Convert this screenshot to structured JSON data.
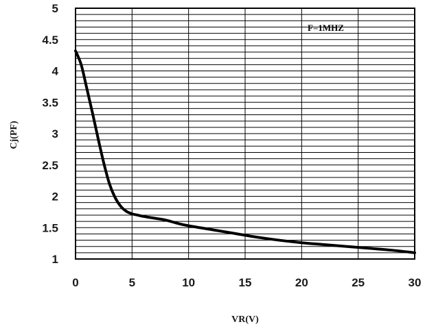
{
  "chart_data": {
    "type": "line",
    "title": "",
    "xlabel": "VR(V)",
    "ylabel": "Cj(PF)",
    "annotation": "F=1MHZ",
    "xlim": [
      0,
      30
    ],
    "ylim": [
      1,
      5
    ],
    "x_ticks": [
      0,
      5,
      10,
      15,
      20,
      25,
      30
    ],
    "y_ticks": [
      1,
      1.5,
      2,
      2.5,
      3,
      3.5,
      4,
      4.5,
      5
    ],
    "y_tick_labels": [
      "1",
      "1.5",
      "2",
      "2.5",
      "3",
      "3.5",
      "4",
      "4.5",
      "5"
    ],
    "grid": {
      "x_major_step": 5,
      "y_minor_step": 0.1
    },
    "series": [
      {
        "color": "#000000",
        "x": [
          0,
          0.5,
          1,
          1.5,
          2,
          2.5,
          3,
          3.5,
          4,
          4.5,
          5,
          5.5,
          6,
          7,
          8,
          9,
          10,
          12,
          14,
          16,
          18,
          20,
          22,
          24,
          26,
          28,
          30
        ],
        "y": [
          4.32,
          4.1,
          3.72,
          3.33,
          2.92,
          2.53,
          2.2,
          1.98,
          1.84,
          1.76,
          1.72,
          1.7,
          1.68,
          1.65,
          1.62,
          1.57,
          1.53,
          1.47,
          1.41,
          1.35,
          1.3,
          1.26,
          1.23,
          1.2,
          1.17,
          1.14,
          1.1
        ]
      }
    ]
  }
}
